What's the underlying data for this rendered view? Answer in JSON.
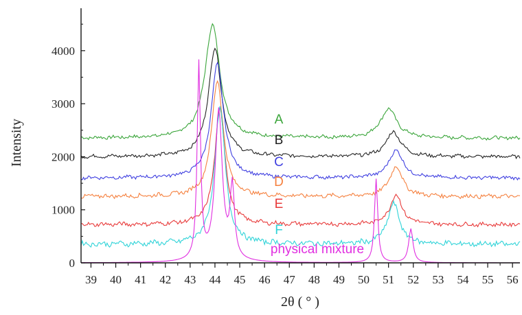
{
  "chart_data": {
    "type": "line",
    "title": "",
    "xlabel": "2θ ( ° )",
    "ylabel": "Intensity",
    "xlim": [
      38.6,
      56.3
    ],
    "ylim": [
      0,
      4800
    ],
    "x_ticks": [
      39,
      40,
      41,
      42,
      43,
      44,
      45,
      46,
      47,
      48,
      49,
      50,
      51,
      52,
      53,
      54,
      55,
      56
    ],
    "y_ticks": [
      0,
      1000,
      2000,
      3000,
      4000
    ],
    "grid": false,
    "legend": "inline labels near curves",
    "series": [
      {
        "name": "A",
        "color": "#3aa53a",
        "baseline": 2350,
        "noise": 30,
        "peaks": [
          {
            "x": 43.9,
            "height": 2150,
            "width": 0.45
          },
          {
            "x": 51.0,
            "height": 550,
            "width": 0.5
          }
        ]
      },
      {
        "name": "B",
        "color": "#222222",
        "baseline": 2000,
        "noise": 30,
        "peaks": [
          {
            "x": 44.0,
            "height": 2050,
            "width": 0.4
          },
          {
            "x": 51.2,
            "height": 470,
            "width": 0.45
          }
        ]
      },
      {
        "name": "C",
        "color": "#3f3fe0",
        "baseline": 1600,
        "noise": 30,
        "peaks": [
          {
            "x": 44.1,
            "height": 2150,
            "width": 0.38
          },
          {
            "x": 51.3,
            "height": 530,
            "width": 0.42
          }
        ]
      },
      {
        "name": "D",
        "color": "#f5803e",
        "baseline": 1250,
        "noise": 35,
        "peaks": [
          {
            "x": 44.1,
            "height": 2200,
            "width": 0.35
          },
          {
            "x": 51.3,
            "height": 570,
            "width": 0.4
          }
        ]
      },
      {
        "name": "E",
        "color": "#e83a3a",
        "baseline": 720,
        "noise": 35,
        "peaks": [
          {
            "x": 44.2,
            "height": 2200,
            "width": 0.32
          },
          {
            "x": 51.3,
            "height": 560,
            "width": 0.38
          }
        ]
      },
      {
        "name": "F",
        "color": "#2fd3d8",
        "baseline": 350,
        "noise": 45,
        "peaks": [
          {
            "x": 44.2,
            "height": 2550,
            "width": 0.33
          },
          {
            "x": 51.2,
            "height": 760,
            "width": 0.38
          }
        ]
      },
      {
        "name": "physical mixture",
        "color": "#e02ee0",
        "baseline": 0,
        "noise": 0,
        "peaks": [
          {
            "x": 43.35,
            "height": 3700,
            "width": 0.1
          },
          {
            "x": 44.15,
            "height": 2850,
            "width": 0.22
          },
          {
            "x": 44.7,
            "height": 1350,
            "width": 0.13
          },
          {
            "x": 50.5,
            "height": 1580,
            "width": 0.1
          },
          {
            "x": 51.9,
            "height": 640,
            "width": 0.13
          }
        ]
      }
    ]
  }
}
